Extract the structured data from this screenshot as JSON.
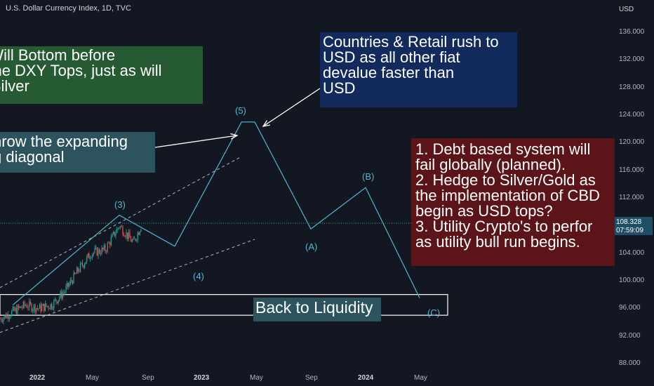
{
  "header": {
    "title": "U.S. Dollar Currency Index, 1D, TVC"
  },
  "axis": {
    "currency": "USD",
    "y_ticks": [
      "136.000",
      "132.000",
      "128.000",
      "124.000",
      "120.000",
      "116.000",
      "112.000",
      "108.000",
      "104.000",
      "100.000",
      "96.000",
      "92.000",
      "88.000"
    ],
    "x_ticks": [
      "2022",
      "May",
      "Sep",
      "2023",
      "May",
      "Sep",
      "2024",
      "May"
    ]
  },
  "price_tag": {
    "price": "108.328",
    "countdown": "07:59:09"
  },
  "annotations": {
    "green_lines": [
      "o Will Bottom before",
      "e the DXY Tops, just as will",
      "& Silver"
    ],
    "teal_lines": [
      "hrow the expanding",
      "g diagonal"
    ],
    "navy_lines": [
      "Countries & Retail rush to",
      "USD as all other fiat",
      "devalue faster than",
      "USD"
    ],
    "red_lines": [
      "1. Debt based system will",
      "fail globally (planned).",
      "2. Hedge to Silver/Gold as",
      "the implementation of CBD",
      "begin as USD tops?",
      "3. Utility Crypto's to perfor",
      "as utility bull run begins."
    ],
    "liquidity": "Back to Liquidity"
  },
  "waves": {
    "w3": "(3)",
    "w4": "(4)",
    "w5": "(5)",
    "wA": "(A)",
    "wB": "(B)",
    "wC": "(C)"
  },
  "colors": {
    "background": "#131722",
    "candle_up": "#26a69a",
    "candle_down": "#ef5350",
    "wave_line": "#4fb8d6",
    "price_tag": "#1e4f66"
  },
  "chart_data": {
    "type": "line",
    "symbol": "TVC:DXY",
    "ylim": [
      86,
      139
    ],
    "price_series": {
      "name": "U.S. Dollar Currency Index",
      "x": [
        "2021-10",
        "2021-11",
        "2021-12",
        "2022-01",
        "2022-02",
        "2022-03",
        "2022-04",
        "2022-05",
        "2022-06",
        "2022-07",
        "2022-08",
        "2022-08-20"
      ],
      "y": [
        94.5,
        95.5,
        96.5,
        96.0,
        96.5,
        98.5,
        101.5,
        104.0,
        104.5,
        108.0,
        105.5,
        108.3
      ]
    },
    "wave_projection": {
      "x": [
        "2021-11",
        "2022-07",
        "2022-11",
        "2023-04",
        "2023-05",
        "2023-09",
        "2024-01",
        "2024-05"
      ],
      "y": [
        96.5,
        109.5,
        105.0,
        123.0,
        123.0,
        107.5,
        113.5,
        97.5
      ],
      "labels": [
        "",
        "(3)",
        "(4)",
        "(5)",
        "",
        "(A)",
        "(B)",
        "(C)"
      ]
    },
    "channel_upper": {
      "x": [
        "2021-10",
        "2023-04"
      ],
      "y": [
        99.0,
        118.0
      ]
    },
    "channel_lower": {
      "x": [
        "2021-10",
        "2023-05"
      ],
      "y": [
        92.5,
        106.0
      ]
    },
    "liquidity_zone": {
      "y": [
        95.0,
        98.0
      ]
    },
    "last_price": 108.328
  }
}
